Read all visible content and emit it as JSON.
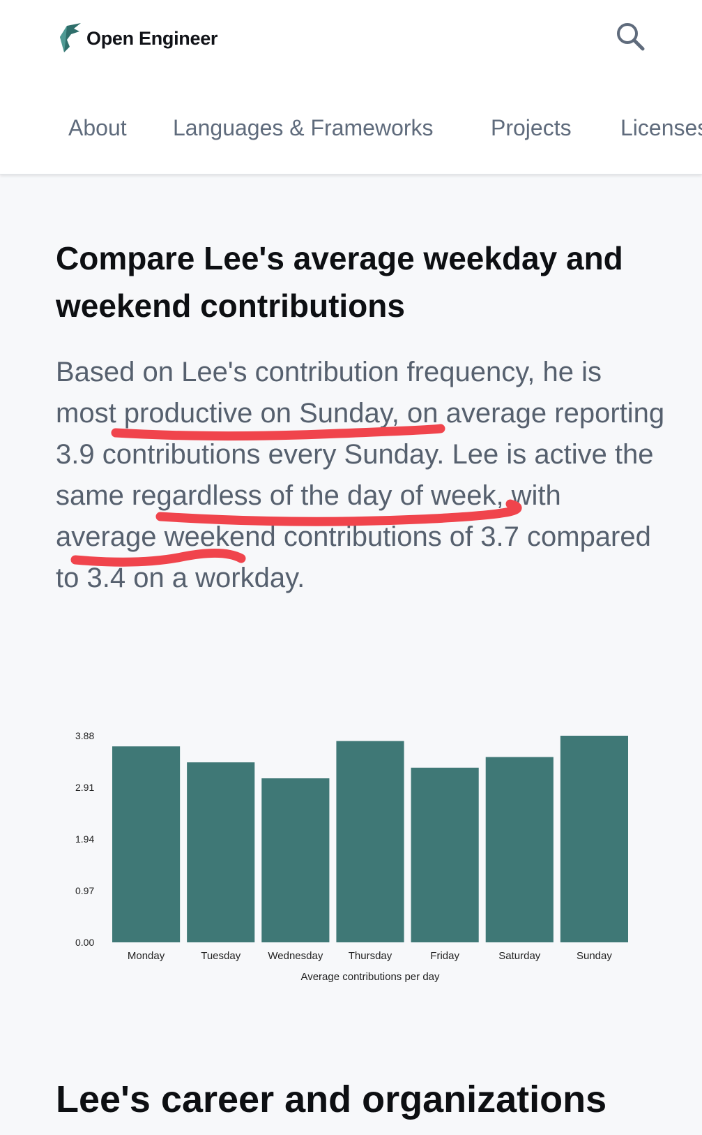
{
  "header": {
    "brand": "Open Engineer",
    "logo_icon": "open-engineer-logo",
    "search_icon": "search-icon",
    "nav": [
      "About",
      "Languages & Frameworks",
      "Projects",
      "Licenses"
    ]
  },
  "section": {
    "title": "Compare Lee's average weekday and weekend contributions",
    "paragraph": "Based on Lee's contribution frequency, he is most productive on Sunday, on average reporting 3.9 contributions every Sunday. Lee is active the same regardless of the day of week, with average weekend contributions of 3.7 compared to 3.4 on a workday."
  },
  "annotation_color": "#f0444c",
  "chart_data": {
    "type": "bar",
    "categories": [
      "Monday",
      "Tuesday",
      "Wednesday",
      "Thursday",
      "Friday",
      "Saturday",
      "Sunday"
    ],
    "values": [
      3.68,
      3.38,
      3.08,
      3.78,
      3.28,
      3.48,
      3.88
    ],
    "ylim": [
      0,
      3.88
    ],
    "yticks": [
      "3.88",
      "2.91",
      "1.94",
      "0.97",
      "0.00"
    ],
    "xlabel": "Average contributions per day",
    "ylabel": "",
    "bar_color": "#3f7876",
    "grid": false
  },
  "section2": {
    "title": "Lee's career and organizations"
  }
}
